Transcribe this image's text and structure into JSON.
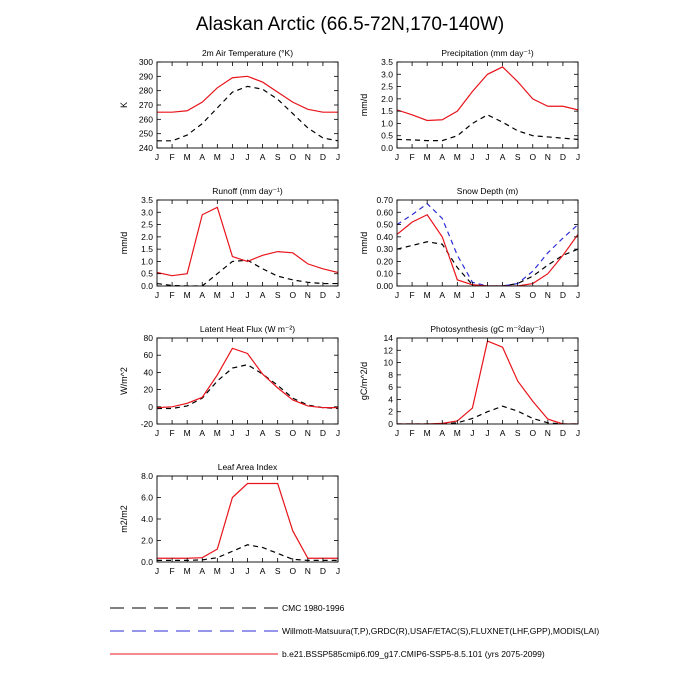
{
  "page": {
    "title": "Alaskan Arctic (66.5-72N,170-140W)"
  },
  "colors": {
    "obs": "#000000",
    "obs2": "#2b2bd9",
    "model": "#e8141b"
  },
  "months": [
    "J",
    "F",
    "M",
    "A",
    "M",
    "J",
    "J",
    "A",
    "S",
    "O",
    "N",
    "D",
    "J"
  ],
  "chart_data": [
    {
      "type": "line",
      "title": "2m Air Temperature (°K)",
      "ylabel": "K",
      "ylim": [
        240,
        300
      ],
      "yticks": [
        "240",
        "250",
        "260",
        "270",
        "280",
        "290",
        "300"
      ],
      "yvals": [
        240,
        250,
        260,
        270,
        280,
        290,
        300
      ],
      "series": [
        {
          "key": "cmc",
          "values": [
            245,
            245,
            249,
            257,
            268,
            279,
            283,
            281,
            274,
            264,
            254,
            247,
            245
          ]
        },
        {
          "key": "model",
          "values": [
            265,
            265,
            266,
            272,
            282,
            289,
            290,
            286,
            279,
            272,
            267,
            265,
            265
          ]
        }
      ]
    },
    {
      "type": "line",
      "title": "Precipitation (mm day⁻¹)",
      "ylabel": "mm/d",
      "ylim": [
        0,
        3.5
      ],
      "yticks": [
        "0.0",
        "0.5",
        "1.0",
        "1.5",
        "2.0",
        "2.5",
        "3.0",
        "3.5"
      ],
      "yvals": [
        0,
        0.5,
        1,
        1.5,
        2,
        2.5,
        3,
        3.5
      ],
      "series": [
        {
          "key": "cmc",
          "values": [
            0.35,
            0.33,
            0.3,
            0.3,
            0.5,
            1.0,
            1.35,
            1.05,
            0.7,
            0.5,
            0.45,
            0.4,
            0.35
          ]
        },
        {
          "key": "model",
          "values": [
            1.55,
            1.35,
            1.12,
            1.15,
            1.5,
            2.3,
            3.0,
            3.3,
            2.7,
            2.0,
            1.7,
            1.7,
            1.55
          ]
        }
      ]
    },
    {
      "type": "line",
      "title": "Runoff (mm day⁻¹)",
      "ylabel": "mm/d",
      "ylim": [
        0,
        3.5
      ],
      "yticks": [
        "0.0",
        "0.5",
        "1.0",
        "1.5",
        "2.0",
        "2.5",
        "3.0",
        "3.5"
      ],
      "yvals": [
        0,
        0.5,
        1,
        1.5,
        2,
        2.5,
        3,
        3.5
      ],
      "series": [
        {
          "key": "cmc",
          "values": [
            0.1,
            0.02,
            0.0,
            0.0,
            0.5,
            1.0,
            1.05,
            0.7,
            0.4,
            0.25,
            0.15,
            0.1,
            0.1
          ]
        },
        {
          "key": "model",
          "values": [
            0.55,
            0.42,
            0.5,
            2.9,
            3.2,
            1.2,
            1.0,
            1.25,
            1.4,
            1.35,
            0.9,
            0.7,
            0.55
          ]
        }
      ]
    },
    {
      "type": "line",
      "title": "Snow Depth (m)",
      "ylabel": "mm/d",
      "ylim": [
        0,
        0.7
      ],
      "yticks": [
        "0.00",
        "0.10",
        "0.20",
        "0.30",
        "0.40",
        "0.50",
        "0.60",
        "0.70"
      ],
      "yvals": [
        0,
        0.1,
        0.2,
        0.3,
        0.4,
        0.5,
        0.6,
        0.7
      ],
      "series": [
        {
          "key": "cmc",
          "values": [
            0.3,
            0.33,
            0.36,
            0.34,
            0.15,
            0.01,
            0.0,
            0.0,
            0.02,
            0.08,
            0.17,
            0.25,
            0.3
          ]
        },
        {
          "key": "obs2",
          "values": [
            0.5,
            0.58,
            0.67,
            0.55,
            0.25,
            0.03,
            0.0,
            0.0,
            0.02,
            0.12,
            0.27,
            0.39,
            0.5
          ]
        },
        {
          "key": "model",
          "values": [
            0.42,
            0.52,
            0.58,
            0.4,
            0.05,
            0.01,
            0.0,
            0.0,
            0.0,
            0.02,
            0.1,
            0.25,
            0.42
          ]
        }
      ]
    },
    {
      "type": "line",
      "title": "Latent Heat Flux (W m⁻²)",
      "ylabel": "W/m^2",
      "ylim": [
        -20,
        80
      ],
      "yticks": [
        "-20",
        "0",
        "20",
        "40",
        "60",
        "80"
      ],
      "yvals": [
        -20,
        0,
        20,
        40,
        60,
        80
      ],
      "series": [
        {
          "key": "cmc",
          "values": [
            -2,
            -2,
            1,
            10,
            30,
            45,
            49,
            38,
            25,
            10,
            2,
            -1,
            -2
          ]
        },
        {
          "key": "model",
          "values": [
            -1,
            0,
            4,
            11,
            37,
            68,
            62,
            38,
            22,
            8,
            1,
            -1,
            -1
          ]
        }
      ]
    },
    {
      "type": "line",
      "title": "Photosynthesis (gC m⁻²day⁻¹)",
      "ylabel": "gC/m^2/d",
      "ylim": [
        0,
        14
      ],
      "yticks": [
        "0",
        "2",
        "4",
        "6",
        "8",
        "10",
        "12",
        "14"
      ],
      "yvals": [
        0,
        2,
        4,
        6,
        8,
        10,
        12,
        14
      ],
      "series": [
        {
          "key": "cmc",
          "values": [
            0,
            0,
            0,
            0,
            0.2,
            0.9,
            2.0,
            2.9,
            2.1,
            0.9,
            0.2,
            0,
            0
          ]
        },
        {
          "key": "model",
          "values": [
            0,
            0,
            0,
            0.1,
            0.5,
            2.6,
            13.5,
            12.5,
            7.0,
            3.7,
            0.8,
            0,
            0
          ]
        }
      ]
    },
    {
      "type": "line",
      "title": "Leaf Area Index",
      "ylabel": "m2/m2",
      "ylim": [
        0,
        8
      ],
      "yticks": [
        "0.0",
        "2.0",
        "4.0",
        "6.0",
        "8.0"
      ],
      "yvals": [
        0,
        2,
        4,
        6,
        8
      ],
      "series": [
        {
          "key": "cmc",
          "values": [
            0.15,
            0.15,
            0.15,
            0.2,
            0.4,
            1.0,
            1.6,
            1.35,
            0.8,
            0.25,
            0.15,
            0.15,
            0.15
          ]
        },
        {
          "key": "model",
          "values": [
            0.35,
            0.35,
            0.35,
            0.4,
            1.2,
            6.0,
            7.3,
            7.3,
            7.3,
            2.9,
            0.35,
            0.35,
            0.35
          ]
        }
      ]
    }
  ],
  "legend": [
    {
      "key": "cmc",
      "label": "CMC 1980-1996"
    },
    {
      "key": "obs2",
      "label": "Willmott-Matsuura(T,P),GRDC(R),USAF/ETAC(S),FLUXNET(LHF,GPP),MODIS(LAI)"
    },
    {
      "key": "model",
      "label": "b.e21.BSSP585cmip6.f09_g17.CMIP6-SSP5-8.5.101 (yrs 2075-2099)"
    }
  ]
}
